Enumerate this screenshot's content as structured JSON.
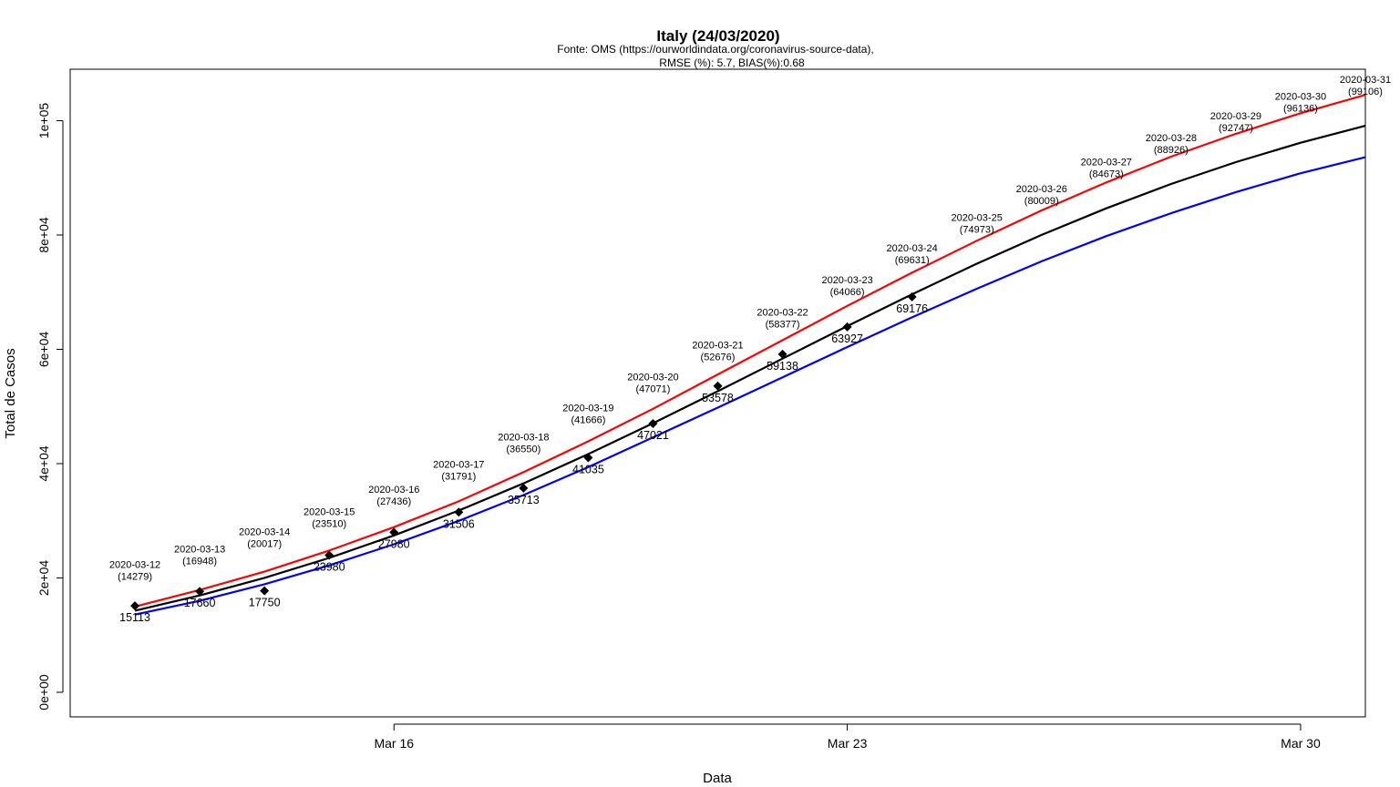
{
  "chart_data": {
    "type": "line",
    "title": "Italy (24/03/2020)",
    "subtitle_lines": [
      "Fonte: OMS (https://ourworldindata.org/coronavirus-source-data),",
      "RMSE (%): 5.7, BIAS(%):0.68"
    ],
    "xlabel": "Data",
    "ylabel": "Total de Casos",
    "xlim": [
      "2020-03-11",
      "2020-03-31"
    ],
    "ylim": [
      -4300,
      109000
    ],
    "x_ticks": [
      {
        "date": "2020-03-16",
        "label": "Mar 16"
      },
      {
        "date": "2020-03-23",
        "label": "Mar 23"
      },
      {
        "date": "2020-03-30",
        "label": "Mar 30"
      }
    ],
    "y_ticks": [
      {
        "value": 0,
        "label": "0e+00"
      },
      {
        "value": 20000,
        "label": "2e+04"
      },
      {
        "value": 40000,
        "label": "4e+04"
      },
      {
        "value": 60000,
        "label": "6e+04"
      },
      {
        "value": 80000,
        "label": "8e+04"
      },
      {
        "value": 100000,
        "label": "1e+05"
      }
    ],
    "grid": false,
    "legend": "none",
    "observed": {
      "color": "#000000",
      "points": [
        {
          "date": "2020-03-12",
          "value": 15113
        },
        {
          "date": "2020-03-13",
          "value": 17660
        },
        {
          "date": "2020-03-14",
          "value": 17750
        },
        {
          "date": "2020-03-15",
          "value": 23980
        },
        {
          "date": "2020-03-16",
          "value": 27980
        },
        {
          "date": "2020-03-17",
          "value": 31506
        },
        {
          "date": "2020-03-18",
          "value": 35713
        },
        {
          "date": "2020-03-19",
          "value": 41035
        },
        {
          "date": "2020-03-20",
          "value": 47021
        },
        {
          "date": "2020-03-21",
          "value": 53578
        },
        {
          "date": "2020-03-22",
          "value": 59138
        },
        {
          "date": "2020-03-23",
          "value": 63927
        },
        {
          "date": "2020-03-24",
          "value": 69176
        }
      ]
    },
    "predicted_labels": [
      {
        "date": "2020-03-12",
        "date_text": "2020-03-12",
        "value_text": "(14279)",
        "value": 14279
      },
      {
        "date": "2020-03-13",
        "date_text": "2020-03-13",
        "value_text": "(16948)",
        "value": 16948
      },
      {
        "date": "2020-03-14",
        "date_text": "2020-03-14",
        "value_text": "(20017)",
        "value": 20017
      },
      {
        "date": "2020-03-15",
        "date_text": "2020-03-15",
        "value_text": "(23510)",
        "value": 23510
      },
      {
        "date": "2020-03-16",
        "date_text": "2020-03-16",
        "value_text": "(27436)",
        "value": 27436
      },
      {
        "date": "2020-03-17",
        "date_text": "2020-03-17",
        "value_text": "(31791)",
        "value": 31791
      },
      {
        "date": "2020-03-18",
        "date_text": "2020-03-18",
        "value_text": "(36550)",
        "value": 36550
      },
      {
        "date": "2020-03-19",
        "date_text": "2020-03-19",
        "value_text": "(41666)",
        "value": 41666
      },
      {
        "date": "2020-03-20",
        "date_text": "2020-03-20",
        "value_text": "(47071)",
        "value": 47071
      },
      {
        "date": "2020-03-21",
        "date_text": "2020-03-21",
        "value_text": "(52676)",
        "value": 52676
      },
      {
        "date": "2020-03-22",
        "date_text": "2020-03-22",
        "value_text": "(58377)",
        "value": 58377
      },
      {
        "date": "2020-03-23",
        "date_text": "2020-03-23",
        "value_text": "(64066)",
        "value": 64066
      },
      {
        "date": "2020-03-24",
        "date_text": "2020-03-24",
        "value_text": "(69631)",
        "value": 69631
      },
      {
        "date": "2020-03-25",
        "date_text": "2020-03-25",
        "value_text": "(74973)",
        "value": 74973
      },
      {
        "date": "2020-03-26",
        "date_text": "2020-03-26",
        "value_text": "(80009)",
        "value": 80009
      },
      {
        "date": "2020-03-27",
        "date_text": "2020-03-27",
        "value_text": "(84673)",
        "value": 84673
      },
      {
        "date": "2020-03-28",
        "date_text": "2020-03-28",
        "value_text": "(88926)",
        "value": 88926
      },
      {
        "date": "2020-03-29",
        "date_text": "2020-03-29",
        "value_text": "(92747)",
        "value": 92747
      },
      {
        "date": "2020-03-30",
        "date_text": "2020-03-30",
        "value_text": "(96136)",
        "value": 96136
      },
      {
        "date": "2020-03-31",
        "date_text": "2020-03-31",
        "value_text": "(99106)",
        "value": 99106
      }
    ],
    "series": [
      {
        "color": "#ff0000",
        "values": [
          15000,
          17900,
          21100,
          24800,
          28900,
          33400,
          38500,
          43900,
          49600,
          55600,
          61600,
          67600,
          73400,
          79000,
          84300,
          89200,
          93700,
          97700,
          101300,
          104500
        ]
      },
      {
        "color": "#000000",
        "values": [
          14279,
          16948,
          20017,
          23510,
          27436,
          31791,
          36550,
          41666,
          47071,
          52676,
          58377,
          64066,
          69631,
          74973,
          80009,
          84673,
          88926,
          92747,
          96136,
          99106
        ]
      },
      {
        "color": "#0000ff",
        "values": [
          13600,
          16000,
          18900,
          22200,
          25900,
          30000,
          34500,
          39400,
          44600,
          49800,
          55100,
          60400,
          65600,
          70600,
          75400,
          79800,
          83800,
          87500,
          90800,
          93600
        ]
      }
    ]
  }
}
